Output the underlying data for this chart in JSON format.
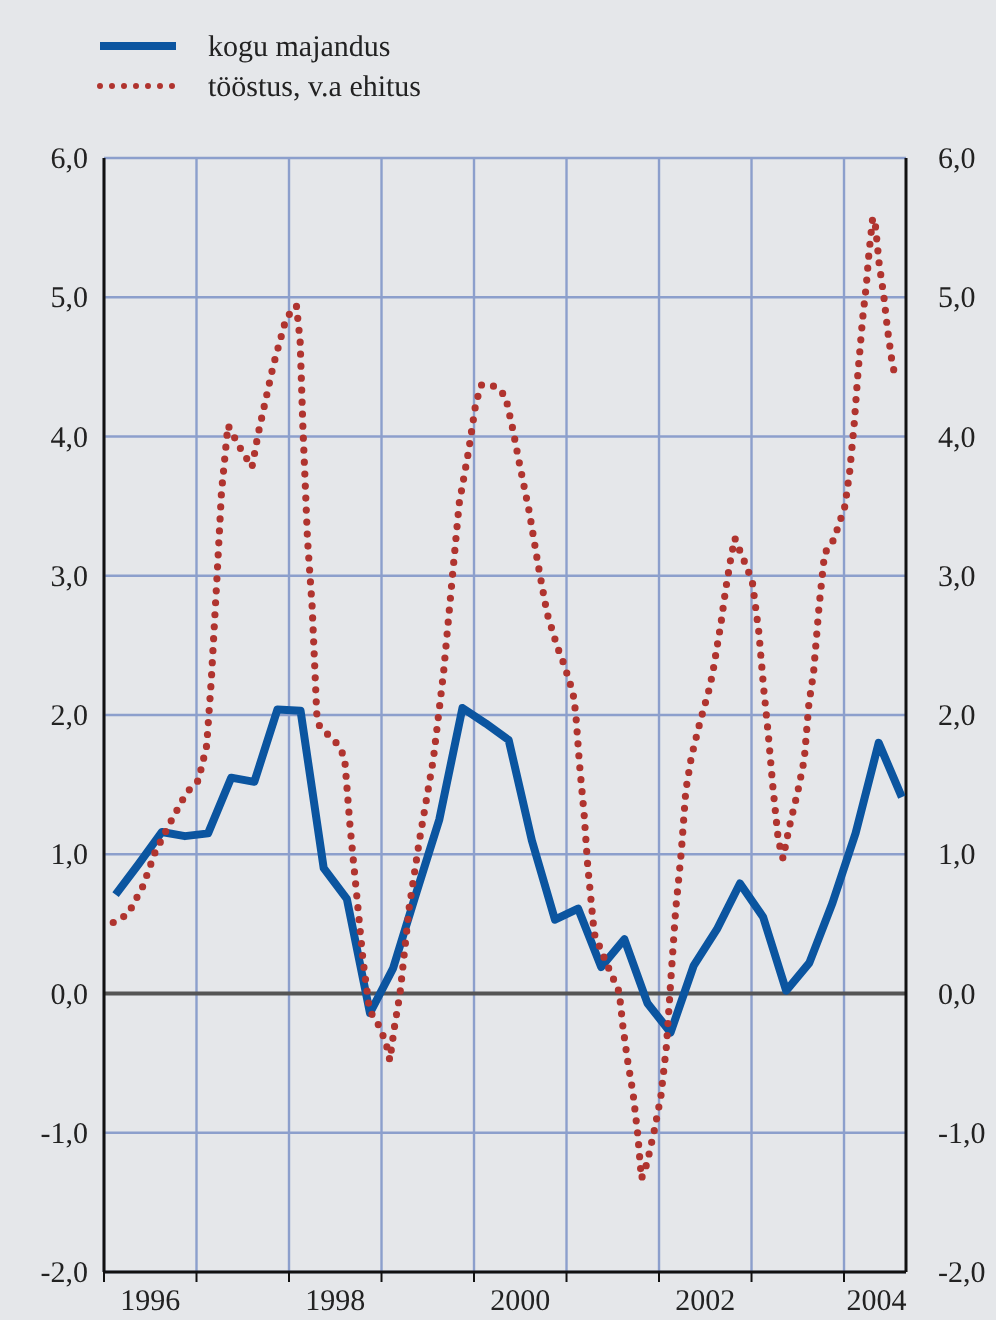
{
  "chart_data": {
    "type": "line",
    "legend": "top left",
    "grid": true,
    "xlim": [
      1996,
      2004.67
    ],
    "xticks": [
      {
        "value": 1996,
        "label": null
      },
      {
        "value": 1997,
        "label": null
      },
      {
        "value": 1998,
        "label": null
      },
      {
        "value": 1999,
        "label": null
      },
      {
        "value": 2000,
        "label": null
      },
      {
        "value": 2001,
        "label": null
      },
      {
        "value": 2002,
        "label": null
      },
      {
        "value": 2003,
        "label": null
      },
      {
        "value": 2004,
        "label": null
      },
      {
        "value": 1996.5,
        "label": "1996"
      },
      {
        "value": 1998.5,
        "label": "1998"
      },
      {
        "value": 2000.5,
        "label": "2000"
      },
      {
        "value": 2002.5,
        "label": "2002"
      },
      {
        "value": 2004.35,
        "label": "2004"
      }
    ],
    "ylim": [
      -2,
      6
    ],
    "yticks": [
      {
        "value": -2,
        "label": "-2,0"
      },
      {
        "value": -1,
        "label": "-1,0"
      },
      {
        "value": 0,
        "label": "0,0"
      },
      {
        "value": 1,
        "label": "1,0"
      },
      {
        "value": 2,
        "label": "2,0"
      },
      {
        "value": 3,
        "label": "3,0"
      },
      {
        "value": 4,
        "label": "4,0"
      },
      {
        "value": 5,
        "label": "5,0"
      },
      {
        "value": 6,
        "label": "6,0"
      }
    ],
    "y2lim": [
      -2,
      6
    ],
    "y2ticks": [
      {
        "value": -2,
        "label": "-2,0"
      },
      {
        "value": -1,
        "label": "-1,0"
      },
      {
        "value": 0,
        "label": "0,0"
      },
      {
        "value": 1,
        "label": "1,0"
      },
      {
        "value": 2,
        "label": "2,0"
      },
      {
        "value": 3,
        "label": "3,0"
      },
      {
        "value": 4,
        "label": "4,0"
      },
      {
        "value": 5,
        "label": "5,0"
      },
      {
        "value": 6,
        "label": "6,0"
      }
    ],
    "ref_lines": [
      {
        "axis": "y",
        "value": 0,
        "color": "#555555"
      }
    ],
    "series": [
      {
        "name": "kogu majandus",
        "color": "#0b55a0",
        "line_style": "solid",
        "x": [
          1996.125,
          1996.375,
          1996.625,
          1996.875,
          1997.125,
          1997.375,
          1997.625,
          1997.875,
          1998.125,
          1998.375,
          1998.625,
          1998.875,
          1999.125,
          1999.375,
          1999.625,
          1999.875,
          2000.125,
          2000.375,
          2000.625,
          2000.875,
          2001.125,
          2001.375,
          2001.625,
          2001.875,
          2002.125,
          2002.375,
          2002.625,
          2002.875,
          2003.125,
          2003.375,
          2003.625,
          2003.875,
          2004.125,
          2004.375,
          2004.625
        ],
        "values": [
          0.71,
          0.93,
          1.16,
          1.13,
          1.15,
          1.55,
          1.52,
          2.04,
          2.03,
          0.9,
          0.68,
          -0.14,
          0.18,
          0.72,
          1.25,
          2.05,
          1.94,
          1.82,
          1.1,
          0.53,
          0.61,
          0.19,
          0.39,
          -0.07,
          -0.28,
          0.2,
          0.46,
          0.79,
          0.55,
          0.02,
          0.22,
          0.65,
          1.15,
          1.8,
          1.41
        ]
      },
      {
        "name": "tööstus, v.a ehitus",
        "color": "#b0342f",
        "line_style": "dotted",
        "x": [
          1996.1,
          1996.26,
          1996.42,
          1996.55,
          1996.71,
          1996.89,
          1997.02,
          1997.11,
          1997.16,
          1997.22,
          1997.27,
          1997.34,
          1997.47,
          1997.6,
          1997.67,
          1997.83,
          1997.97,
          1998.08,
          1998.12,
          1998.15,
          1998.2,
          1998.25,
          1998.3,
          1998.33,
          1998.51,
          1998.6,
          1998.66,
          1998.73,
          1998.8,
          1998.87,
          1998.98,
          1999.05,
          1999.09,
          1999.14,
          1999.2,
          1999.3,
          1999.41,
          1999.56,
          1999.67,
          1999.77,
          1999.84,
          1999.94,
          2000.02,
          2000.08,
          2000.23,
          2000.34,
          2000.42,
          2000.49,
          2000.6,
          2000.69,
          2000.79,
          2000.9,
          2000.97,
          2001.07,
          2001.1,
          2001.14,
          2001.19,
          2001.23,
          2001.3,
          2001.43,
          2001.57,
          2001.61,
          2001.66,
          2001.72,
          2001.77,
          2001.81,
          2001.87,
          2001.95,
          2002.02,
          2002.08,
          2002.13,
          2002.18,
          2002.24,
          2002.29,
          2002.35,
          2002.44,
          2002.54,
          2002.58,
          2002.67,
          2002.72,
          2002.78,
          2002.82,
          2002.88,
          2002.95,
          2003.01,
          2003.08,
          2003.13,
          2003.18,
          2003.23,
          2003.29,
          2003.34,
          2003.41,
          2003.5,
          2003.57,
          2003.62,
          2003.67,
          2003.73,
          2003.79,
          2003.89,
          2003.95,
          2004.01,
          2004.06,
          2004.11,
          2004.15,
          2004.2,
          2004.24,
          2004.27,
          2004.31,
          2004.34,
          2004.38,
          2004.43,
          2004.47,
          2004.52,
          2004.56
        ],
        "values": [
          0.51,
          0.57,
          0.77,
          1.01,
          1.22,
          1.44,
          1.53,
          1.78,
          2.25,
          2.97,
          3.6,
          4.08,
          3.92,
          3.78,
          4.03,
          4.51,
          4.85,
          4.94,
          4.69,
          4.07,
          3.26,
          2.78,
          2.01,
          1.92,
          1.8,
          1.7,
          1.2,
          0.72,
          0.24,
          -0.12,
          -0.24,
          -0.36,
          -0.48,
          -0.24,
          0,
          0.62,
          1.1,
          1.68,
          2.3,
          3.02,
          3.52,
          3.89,
          4.24,
          4.37,
          4.36,
          4.29,
          4.05,
          3.81,
          3.45,
          3.09,
          2.73,
          2.49,
          2.37,
          2.16,
          2.01,
          1.65,
          1.29,
          0.91,
          0.43,
          0.22,
          0.01,
          -0.24,
          -0.48,
          -0.72,
          -1.01,
          -1.33,
          -1.22,
          -0.98,
          -0.74,
          -0.38,
          0.12,
          0.6,
          1.01,
          1.46,
          1.7,
          1.94,
          2.18,
          2.3,
          2.66,
          2.9,
          3.14,
          3.27,
          3.17,
          3.06,
          2.95,
          2.59,
          2.2,
          1.87,
          1.49,
          1.1,
          0.97,
          1.2,
          1.45,
          1.68,
          2.08,
          2.3,
          2.78,
          3.16,
          3.26,
          3.38,
          3.5,
          3.74,
          4.09,
          4.45,
          4.84,
          5.08,
          5.32,
          5.57,
          5.51,
          5.24,
          5.01,
          4.77,
          4.53,
          4.41
        ]
      }
    ]
  }
}
